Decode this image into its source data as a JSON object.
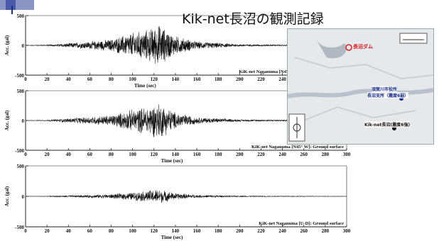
{
  "slide": {
    "title": "Kik-net長沼の観測記録"
  },
  "map": {
    "dam_label": "長沼ダム",
    "office_label_line1": "須賀川市役所",
    "office_label_line2": "長沼支所（震度6弱）",
    "station_label": "Kik-net長沼(震度6強)"
  },
  "chart_data": [
    {
      "type": "line",
      "ylabel": "Acc. (gal)",
      "xlabel": "Time (sec)",
      "ylim": [
        -500,
        500
      ],
      "xlim": [
        0,
        250
      ],
      "yticks": [
        "500",
        "0",
        "-500"
      ],
      "xticks": [
        "0",
        "20",
        "40",
        "60",
        "80",
        "100",
        "120",
        "140",
        "160",
        "180",
        "200",
        "220",
        "240"
      ],
      "annotation": "KiK-net Naganuma [N45°",
      "envelope": {
        "description_points_t": [
          0,
          20,
          40,
          60,
          80,
          100,
          110,
          120,
          125,
          130,
          140,
          160,
          200,
          250
        ],
        "description_points_a": [
          3,
          8,
          40,
          70,
          110,
          230,
          260,
          330,
          380,
          300,
          170,
          70,
          20,
          8
        ]
      }
    },
    {
      "type": "line",
      "ylabel": "Acc. (gal)",
      "xlabel": "Time (sec)",
      "ylim": [
        -500,
        500
      ],
      "xlim": [
        0,
        300
      ],
      "yticks": [
        "500",
        "0",
        "-500"
      ],
      "xticks": [
        "0",
        "20",
        "40",
        "60",
        "80",
        "100",
        "120",
        "140",
        "160",
        "180",
        "200",
        "220",
        "240",
        "260",
        "280",
        "300"
      ],
      "annotation": "KiK-net Naganuma [N45°  W]: Ground surface",
      "envelope": {
        "description_points_t": [
          0,
          20,
          40,
          60,
          80,
          100,
          110,
          120,
          125,
          130,
          140,
          160,
          200,
          300
        ],
        "description_points_a": [
          3,
          8,
          40,
          65,
          100,
          200,
          240,
          300,
          330,
          270,
          150,
          60,
          18,
          6
        ]
      }
    },
    {
      "type": "line",
      "ylabel": "Acc. (gal)",
      "xlabel": "Time (sec)",
      "ylim": [
        -500,
        500
      ],
      "xlim": [
        0,
        300
      ],
      "yticks": [
        "500",
        "0",
        "-500"
      ],
      "xticks": [
        "0",
        "20",
        "40",
        "60",
        "80",
        "100",
        "120",
        "140",
        "160",
        "180",
        "200",
        "220",
        "240",
        "260",
        "280",
        "300"
      ],
      "annotation": "KiK-net Naganuma [U-D]: Ground surface",
      "envelope": {
        "description_points_t": [
          0,
          20,
          40,
          60,
          80,
          100,
          110,
          120,
          125,
          130,
          140,
          160,
          200,
          300
        ],
        "description_points_a": [
          2,
          5,
          15,
          25,
          40,
          70,
          90,
          120,
          130,
          100,
          60,
          25,
          8,
          3
        ]
      }
    }
  ]
}
